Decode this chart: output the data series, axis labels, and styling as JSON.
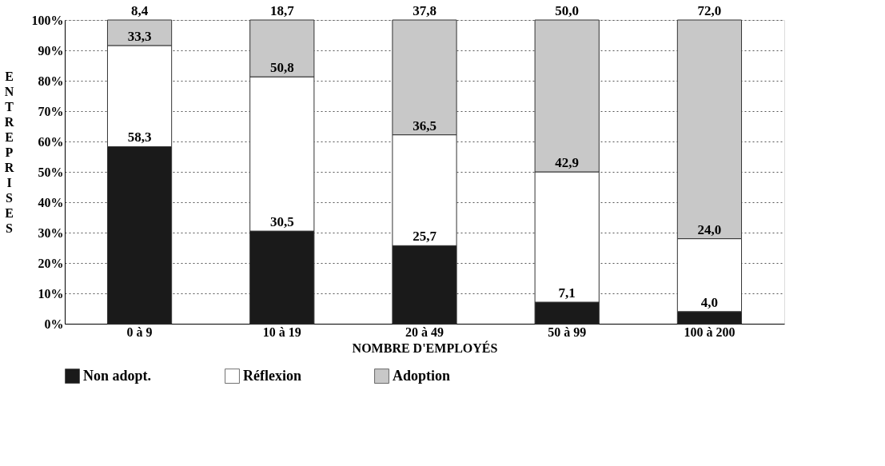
{
  "chart_data": {
    "type": "bar",
    "stacked": true,
    "xlabel": "NOMBRE D'EMPLOYÉS",
    "ylabel": "ENTREPRISES",
    "categories": [
      "0 à 9",
      "10 à 19",
      "20 à 49",
      "50 à 99",
      "100 à 200"
    ],
    "series": [
      {
        "name": "Non adopt.",
        "color": "#1a1a1a",
        "values": [
          58.3,
          30.5,
          25.7,
          7.1,
          4.0
        ],
        "value_labels": [
          "58,3",
          "30,5",
          "25,7",
          "7,1",
          "4,0"
        ]
      },
      {
        "name": "Réflexion",
        "color": "#ffffff",
        "values": [
          33.3,
          50.8,
          36.5,
          42.9,
          24.0
        ],
        "value_labels": [
          "33,3",
          "50,8",
          "36,5",
          "42,9",
          "24,0"
        ]
      },
      {
        "name": "Adoption",
        "color": "#c8c8c8",
        "values": [
          8.4,
          18.7,
          37.8,
          50.0,
          72.0
        ],
        "value_labels": [
          "8,4",
          "18,7",
          "37,8",
          "50,0",
          "72,0"
        ]
      }
    ],
    "ylim": [
      0,
      100
    ],
    "yticks": [
      {
        "value": 0,
        "label": "0%"
      },
      {
        "value": 10,
        "label": "10%"
      },
      {
        "value": 20,
        "label": "20%"
      },
      {
        "value": 30,
        "label": "30%"
      },
      {
        "value": 40,
        "label": "40%"
      },
      {
        "value": 50,
        "label": "50%"
      },
      {
        "value": 60,
        "label": "60%"
      },
      {
        "value": 70,
        "label": "70%"
      },
      {
        "value": 80,
        "label": "80%"
      },
      {
        "value": 90,
        "label": "90%"
      },
      {
        "value": 100,
        "label": "100%"
      }
    ],
    "grid": "y",
    "legend": "bottom"
  }
}
